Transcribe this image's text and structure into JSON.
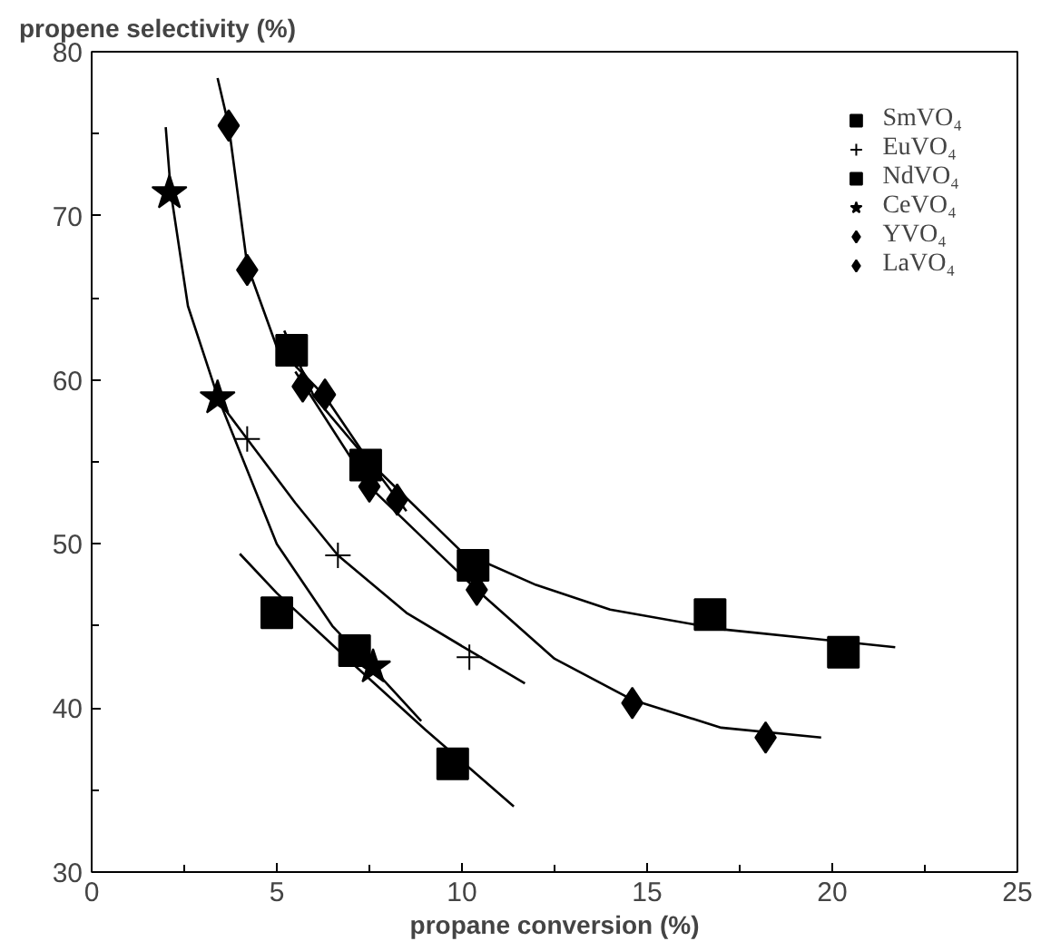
{
  "chart_data": {
    "type": "scatter",
    "xlabel": "propane conversion (%)",
    "ylabel": "propene selectivity (%)",
    "xlim": [
      0,
      25
    ],
    "ylim": [
      30,
      80
    ],
    "xticks": [
      0,
      {
        "value": 2.5,
        "label": null
      },
      5,
      {
        "value": 7.5,
        "label": null
      },
      10,
      {
        "value": 12.5,
        "label": null
      },
      15,
      {
        "value": 17.5,
        "label": null
      },
      20,
      {
        "value": 22.5,
        "label": null
      },
      25
    ],
    "yticks": [
      30,
      {
        "value": 35,
        "label": null
      },
      40,
      {
        "value": 45,
        "label": null
      },
      50,
      {
        "value": 55,
        "label": null
      },
      60,
      {
        "value": 65,
        "label": null
      },
      70,
      {
        "value": 75,
        "label": null
      },
      80
    ],
    "grid": false,
    "legend": "top right",
    "series": [
      {
        "name": "SmVO₄",
        "color": "#000000",
        "marker": "square",
        "x": [
          5.4,
          7.4,
          10.3,
          16.7,
          20.3
        ],
        "values": [
          61.8,
          54.8,
          48.7,
          45.7,
          43.4
        ]
      },
      {
        "name": "EuVO₄",
        "color": "#000000",
        "marker": "cross",
        "x": [
          4.2,
          6.65,
          10.2
        ],
        "values": [
          56.4,
          49.3,
          43.1
        ]
      },
      {
        "name": "NdVO₄",
        "color": "#000000",
        "marker": "square",
        "x": [
          5.0,
          7.1,
          9.75
        ],
        "values": [
          45.8,
          43.5,
          36.6
        ]
      },
      {
        "name": "CeVO₄",
        "color": "#000000",
        "marker": "star",
        "x": [
          2.1,
          3.4,
          7.6
        ],
        "values": [
          71.4,
          58.9,
          42.5
        ]
      },
      {
        "name": "YVO₄",
        "color": "#000000",
        "marker": "diamond",
        "x": [
          5.7,
          7.5,
          10.4,
          14.6,
          18.2
        ],
        "values": [
          59.6,
          53.5,
          47.2,
          40.3,
          38.2
        ]
      },
      {
        "name": "LaVO₄",
        "color": "#000000",
        "marker": "diamond",
        "x": [
          3.7,
          4.2,
          6.3,
          8.25
        ],
        "values": [
          75.5,
          66.7,
          59.1,
          52.7
        ]
      },
      {
        "type": "line",
        "color": "#000000",
        "x": [
          5.2,
          6,
          7.5,
          10,
          12,
          14,
          17,
          20,
          21.7
        ],
        "values": [
          63,
          59,
          55,
          49.5,
          47.5,
          46,
          44.8,
          44.1,
          43.7
        ]
      },
      {
        "type": "line",
        "color": "#000000",
        "x": [
          5.5,
          7.5,
          10.4,
          12.5,
          14.6,
          17,
          19.7
        ],
        "values": [
          60.5,
          53.5,
          47.2,
          43,
          40.5,
          38.8,
          38.2
        ]
      },
      {
        "type": "line",
        "color": "#000000",
        "x": [
          2.0,
          2.14,
          2.6,
          3.4,
          5,
          6.5,
          7.6,
          8.9
        ],
        "values": [
          75.4,
          71.4,
          64.5,
          59,
          50,
          45,
          42.4,
          39.2
        ]
      },
      {
        "type": "line",
        "color": "#000000",
        "x": [
          3.5,
          4.2,
          5.5,
          6.65,
          8.5,
          10.2,
          11.7
        ],
        "values": [
          58.5,
          56.4,
          52.5,
          49.3,
          45.8,
          43.5,
          41.5
        ]
      },
      {
        "type": "line",
        "color": "#000000",
        "x": [
          4.0,
          5,
          7.1,
          9,
          11.4
        ],
        "values": [
          49.4,
          47,
          42.6,
          38.7,
          34
        ]
      },
      {
        "type": "line",
        "color": "#000000",
        "x": [
          3.4,
          3.7,
          4.2,
          5,
          6.3,
          7.5,
          8.5
        ],
        "values": [
          78.4,
          75.5,
          67,
          62,
          59,
          55,
          52
        ]
      }
    ]
  }
}
